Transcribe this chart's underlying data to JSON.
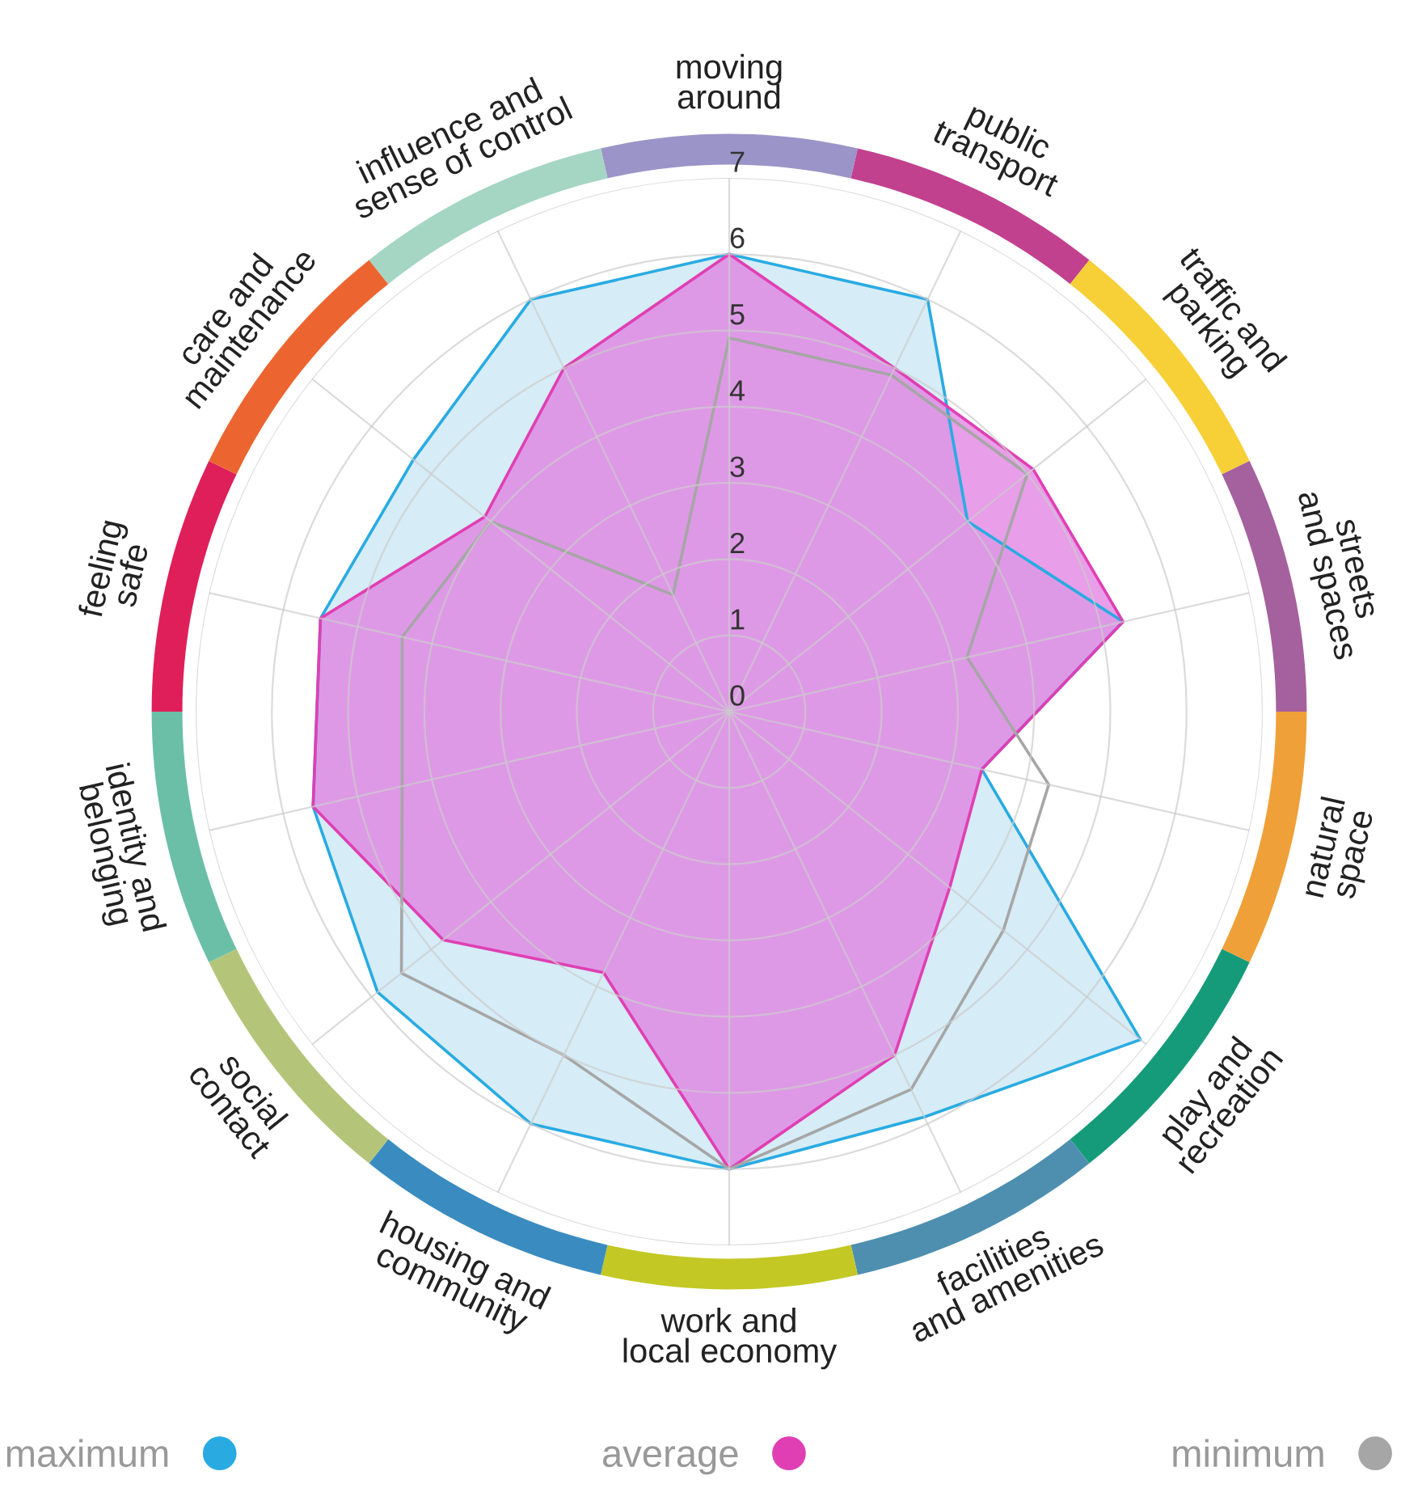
{
  "chart_data": {
    "type": "radar",
    "categories": [
      "moving\naround",
      "public\ntransport",
      "traffic and\nparking",
      "streets\nand spaces",
      "natural\nspace",
      "play and\nrecreation",
      "facilities\nand amenities",
      "work and\nlocal economy",
      "housing and\ncommunity",
      "social\ncontact",
      "identity and\nbelonging",
      "feeling\nsafe",
      "care and\nmaintenance",
      "influence and\nsense of control"
    ],
    "colors": [
      "#9b94c8",
      "#c2418f",
      "#f7cf36",
      "#a5609e",
      "#f0a038",
      "#159b7a",
      "#4e8fb0",
      "#c3c825",
      "#3a8cc0",
      "#b4c57a",
      "#6bbfa7",
      "#df1f5a",
      "#ec6530",
      "#a4d6c3"
    ],
    "series": [
      {
        "name": "maximum",
        "color": "#29abe2",
        "values": [
          6,
          6,
          4,
          5.3,
          3.4,
          6.9,
          5.9,
          6,
          6,
          5.9,
          5.6,
          5.5,
          5.3,
          6
        ]
      },
      {
        "name": "average",
        "color": "#e03fb4",
        "values": [
          6,
          5,
          5.1,
          5.3,
          3.4,
          3.7,
          5,
          6,
          3.8,
          4.8,
          5.6,
          5.5,
          4.1,
          5
        ]
      },
      {
        "name": "minimum",
        "color": "#a6a6a6",
        "values": [
          4.9,
          4.9,
          5,
          3.2,
          4.3,
          4.6,
          5.5,
          6,
          5,
          5.5,
          4.4,
          4.4,
          4,
          1.7
        ]
      }
    ],
    "ylim": [
      0,
      7
    ],
    "yticks": [
      0,
      1,
      2,
      3,
      4,
      5,
      6,
      7
    ],
    "grid": true,
    "legend": "bottom"
  }
}
